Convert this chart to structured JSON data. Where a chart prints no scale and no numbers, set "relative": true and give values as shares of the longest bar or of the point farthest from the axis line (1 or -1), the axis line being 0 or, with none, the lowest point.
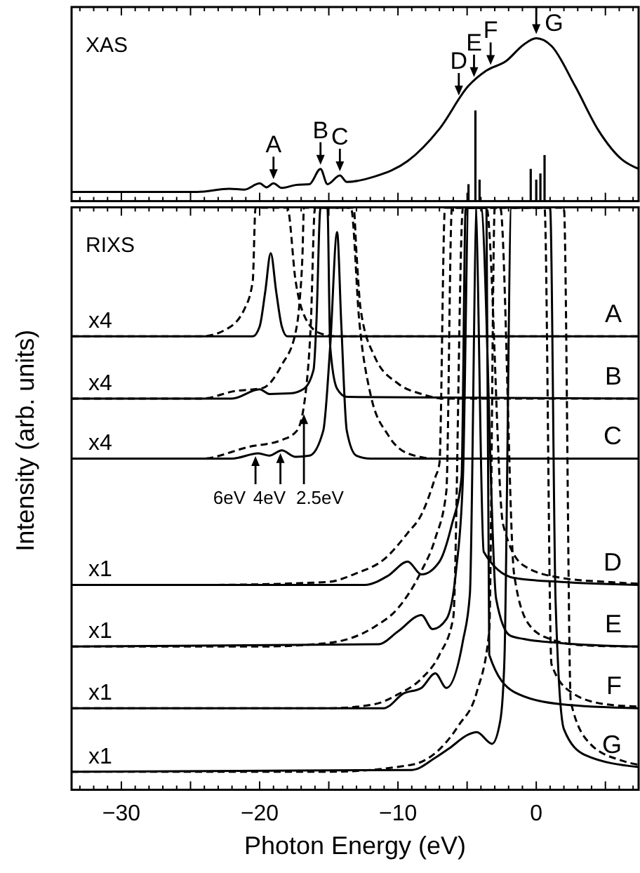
{
  "chart_data": [
    {
      "type": "line",
      "title": "XAS",
      "relative": true,
      "tick_labels": false,
      "xlim": [
        -33.6,
        7.4
      ],
      "xticks": [
        {
          "value": -33,
          "label": null
        },
        {
          "value": -32,
          "label": null
        },
        {
          "value": -31,
          "label": null
        },
        {
          "value": -30,
          "label": null
        },
        {
          "value": -29,
          "label": null
        },
        {
          "value": -28,
          "label": null
        },
        {
          "value": -27,
          "label": null
        },
        {
          "value": -26,
          "label": null
        },
        {
          "value": -25,
          "label": null
        },
        {
          "value": -24,
          "label": null
        },
        {
          "value": -23,
          "label": null
        },
        {
          "value": -22,
          "label": null
        },
        {
          "value": -21,
          "label": null
        },
        {
          "value": -20,
          "label": null
        },
        {
          "value": -19,
          "label": null
        },
        {
          "value": -18,
          "label": null
        },
        {
          "value": -17,
          "label": null
        },
        {
          "value": -16,
          "label": null
        },
        {
          "value": -15,
          "label": null
        },
        {
          "value": -14,
          "label": null
        },
        {
          "value": -13,
          "label": null
        },
        {
          "value": -12,
          "label": null
        },
        {
          "value": -11,
          "label": null
        },
        {
          "value": -10,
          "label": null
        },
        {
          "value": -9,
          "label": null
        },
        {
          "value": -8,
          "label": null
        },
        {
          "value": -7,
          "label": null
        },
        {
          "value": -6,
          "label": null
        },
        {
          "value": -5,
          "label": null
        },
        {
          "value": -4,
          "label": null
        },
        {
          "value": -3,
          "label": null
        },
        {
          "value": -2,
          "label": null
        },
        {
          "value": -1,
          "label": null
        },
        {
          "value": 0,
          "label": null
        },
        {
          "value": 1,
          "label": null
        },
        {
          "value": 2,
          "label": null
        },
        {
          "value": 3,
          "label": null
        },
        {
          "value": 4,
          "label": null
        },
        {
          "value": 5,
          "label": null
        },
        {
          "value": 6,
          "label": null
        },
        {
          "value": 7,
          "label": null
        }
      ],
      "series": [
        {
          "color": "#000000",
          "line_style": "solid",
          "x": [
            -33.6,
            -24.5,
            -22.2,
            -21.1,
            -20.0,
            -19.5,
            -19.0,
            -18.4,
            -17.4,
            -16.4,
            -15.6,
            -15.1,
            -14.2,
            -13.7,
            -11.7,
            -9.3,
            -7.0,
            -4.9,
            -3.6,
            -2.2,
            -0.9,
            0,
            1.1,
            2.8,
            4.5,
            6.2,
            7.4
          ],
          "values": [
            0.057,
            0.057,
            0.076,
            0.071,
            0.109,
            0.085,
            0.109,
            0.081,
            0.099,
            0.104,
            0.198,
            0.104,
            0.158,
            0.118,
            0.151,
            0.246,
            0.444,
            0.708,
            0.802,
            0.859,
            0.962,
            1,
            0.953,
            0.708,
            0.434,
            0.255,
            0.198
          ]
        },
        {
          "type": "bar",
          "color": "#000000",
          "x": [
            -4.9,
            -4.4,
            -4.1,
            -0.4,
            0,
            0.3,
            0.6
          ],
          "values": [
            0.104,
            0.557,
            0.132,
            0.198,
            0.132,
            0.17,
            0.283
          ]
        }
      ],
      "annotations": [
        {
          "text": "A",
          "x": -19.0,
          "y": 0.109
        },
        {
          "text": "B",
          "x": -15.6,
          "y": 0.198
        },
        {
          "text": "C",
          "x": -14.2,
          "y": 0.158
        },
        {
          "text": "D",
          "x": -5.6,
          "y": 0.623
        },
        {
          "text": "E",
          "x": -4.5,
          "y": 0.736
        },
        {
          "text": "F",
          "x": -3.3,
          "y": 0.811
        },
        {
          "text": "G",
          "x": 0,
          "y": 1
        }
      ]
    },
    {
      "type": "line",
      "title": "RIXS",
      "relative": true,
      "tick_labels": "x",
      "xlabel": "Photon Energy (eV)",
      "ylabel": "Intensity (arb. units)",
      "xlim": [
        -33.6,
        7.4
      ],
      "xticks": [
        {
          "value": -33,
          "label": null
        },
        {
          "value": -32,
          "label": null
        },
        {
          "value": -31,
          "label": null
        },
        {
          "value": -30,
          "label": "−30"
        },
        {
          "value": -29,
          "label": null
        },
        {
          "value": -28,
          "label": null
        },
        {
          "value": -27,
          "label": null
        },
        {
          "value": -26,
          "label": null
        },
        {
          "value": -25,
          "label": null
        },
        {
          "value": -24,
          "label": null
        },
        {
          "value": -23,
          "label": null
        },
        {
          "value": -22,
          "label": null
        },
        {
          "value": -21,
          "label": null
        },
        {
          "value": -20,
          "label": "−20"
        },
        {
          "value": -19,
          "label": null
        },
        {
          "value": -18,
          "label": null
        },
        {
          "value": -17,
          "label": null
        },
        {
          "value": -16,
          "label": null
        },
        {
          "value": -15,
          "label": null
        },
        {
          "value": -14,
          "label": null
        },
        {
          "value": -13,
          "label": null
        },
        {
          "value": -12,
          "label": null
        },
        {
          "value": -11,
          "label": null
        },
        {
          "value": -10,
          "label": "−10"
        },
        {
          "value": -9,
          "label": null
        },
        {
          "value": -8,
          "label": null
        },
        {
          "value": -7,
          "label": null
        },
        {
          "value": -6,
          "label": null
        },
        {
          "value": -5,
          "label": null
        },
        {
          "value": -4,
          "label": null
        },
        {
          "value": -3,
          "label": null
        },
        {
          "value": -2,
          "label": null
        },
        {
          "value": -1,
          "label": null
        },
        0,
        {
          "value": 1,
          "label": null
        },
        {
          "value": 2,
          "label": null
        },
        {
          "value": 3,
          "label": null
        },
        {
          "value": 4,
          "label": null
        },
        {
          "value": 5,
          "label": null
        },
        {
          "value": 6,
          "label": null
        },
        {
          "value": 7,
          "label": null
        }
      ],
      "series": [
        {
          "name": "A",
          "color": "#000000",
          "line_style": "solid",
          "x": [
            -33.6,
            -20.5,
            -20.0,
            -19.6,
            -19.2,
            -18.8,
            -18.4,
            -18.0,
            7.4
          ],
          "values": [
            0.779,
            0.779,
            0.796,
            0.855,
            0.922,
            0.855,
            0.796,
            0.779,
            0.779
          ]
        },
        {
          "color": "#000000",
          "line_style": "dashed",
          "x": [
            -33.6,
            -24.2,
            -22.5,
            -21.1,
            -20.5,
            -20.3,
            -18.0,
            -17.4,
            -16.8,
            -15.7,
            -14.4,
            7.4
          ],
          "values": [
            0.779,
            0.779,
            0.79,
            0.826,
            0.874,
            1,
            1,
            0.874,
            0.816,
            0.785,
            0.779,
            0.779
          ]
        },
        {
          "name": "B",
          "color": "#000000",
          "line_style": "solid",
          "x": [
            -33.6,
            -22,
            -20.0,
            -19.3,
            -17.8,
            -16.8,
            -16.1,
            -15.9,
            -15.6,
            -15.1,
            -14.9,
            -14.4,
            -13.7,
            7.4
          ],
          "values": [
            0.672,
            0.672,
            0.688,
            0.68,
            0.681,
            0.689,
            0.722,
            0.801,
            1,
            1,
            0.762,
            0.689,
            0.675,
            0.672
          ]
        },
        {
          "color": "#000000",
          "line_style": "dashed",
          "x": [
            -33.6,
            -24.2,
            -21.8,
            -19.8,
            -18.4,
            -17.4,
            -17.1,
            -16.9,
            -16.8,
            -13.2,
            -13.0,
            -12.7,
            -11.7,
            -10.0,
            -8.3,
            -6.6,
            7.4
          ],
          "values": [
            0.672,
            0.672,
            0.685,
            0.69,
            0.73,
            0.786,
            0.842,
            0.922,
            1,
            1,
            0.922,
            0.826,
            0.745,
            0.698,
            0.68,
            0.672,
            0.672
          ]
        },
        {
          "name": "C",
          "color": "#000000",
          "line_style": "solid",
          "x": [
            -33.6,
            -22,
            -20.1,
            -19.3,
            -18.4,
            -17.4,
            -16.4,
            -15.4,
            -14.9,
            -14.4,
            -14.1,
            -13.7,
            -13.0,
            -12.0,
            7.4
          ],
          "values": [
            0.569,
            0.569,
            0.578,
            0.574,
            0.583,
            0.572,
            0.574,
            0.617,
            0.762,
            0.958,
            0.801,
            0.617,
            0.574,
            0.569,
            0.569
          ]
        },
        {
          "color": "#000000",
          "line_style": "dashed",
          "x": [
            -33.6,
            -24.2,
            -20.8,
            -18.4,
            -17.3,
            -16.6,
            -16.3,
            -16.0,
            -13.4,
            -12.8,
            -12.0,
            -10.7,
            -9.3,
            -7.3,
            7.4
          ],
          "values": [
            0.569,
            0.569,
            0.589,
            0.601,
            0.617,
            0.698,
            0.801,
            1,
            1,
            0.806,
            0.681,
            0.609,
            0.578,
            0.569,
            0.569
          ]
        },
        {
          "name": "D",
          "color": "#000000",
          "line_style": "solid",
          "x": [
            -33.6,
            -12.4,
            -10.7,
            -9.3,
            -8.3,
            -7.0,
            -6.1,
            -5.4,
            -5.1,
            -4.4,
            -3.8,
            -1.6,
            1.8,
            7.4
          ],
          "values": [
            0.352,
            0.352,
            0.368,
            0.392,
            0.37,
            0.392,
            0.456,
            0.537,
            1,
            1,
            0.409,
            0.364,
            0.357,
            0.352
          ]
        },
        {
          "color": "#000000",
          "line_style": "dashed",
          "x": [
            -33.6,
            -23.9,
            -15.1,
            -13.0,
            -11.0,
            -9.3,
            -8.3,
            -7.3,
            -7.0,
            -6.6,
            -3.6,
            -2.4,
            -0.9,
            1.8,
            5.2,
            7.4
          ],
          "values": [
            0.352,
            0.352,
            0.357,
            0.372,
            0.396,
            0.441,
            0.473,
            0.537,
            0.561,
            1,
            1,
            0.456,
            0.385,
            0.364,
            0.357,
            0.354
          ]
        },
        {
          "name": "E",
          "color": "#000000",
          "line_style": "solid",
          "x": [
            -33.6,
            -11.4,
            -10.0,
            -8.3,
            -7.5,
            -6.5,
            -5.8,
            -5.3,
            -4.9,
            -4.0,
            -2.9,
            -1.9,
            -0.9,
            1.8,
            7.4
          ],
          "values": [
            0.246,
            0.25,
            0.272,
            0.3,
            0.276,
            0.293,
            0.376,
            0.537,
            1,
            1,
            0.328,
            0.265,
            0.259,
            0.252,
            0.246
          ]
        },
        {
          "color": "#000000",
          "line_style": "dashed",
          "x": [
            -33.6,
            -20.1,
            -15.1,
            -11.7,
            -10.0,
            -8.3,
            -7.3,
            -6.5,
            -6.1,
            -2.6,
            -1.6,
            -0.5,
            1.0,
            3.5,
            7.4
          ],
          "values": [
            0.246,
            0.246,
            0.252,
            0.28,
            0.312,
            0.376,
            0.432,
            0.513,
            1,
            1,
            0.37,
            0.283,
            0.259,
            0.248,
            0.246
          ]
        },
        {
          "name": "F",
          "color": "#000000",
          "line_style": "solid",
          "x": [
            -33.6,
            -11.0,
            -10.7,
            -9.7,
            -8.3,
            -7.3,
            -6.5,
            -5.3,
            -4.8,
            -4.3,
            -3.6,
            -3.4,
            -1.6,
            1.8,
            7.4
          ],
          "values": [
            0.14,
            0.14,
            0.143,
            0.164,
            0.175,
            0.2,
            0.175,
            0.256,
            0.336,
            1,
            1,
            0.232,
            0.168,
            0.147,
            0.14
          ]
        },
        {
          "color": "#000000",
          "line_style": "dashed",
          "x": [
            -33.6,
            -15.1,
            -11.7,
            -10.0,
            -8.3,
            -7.0,
            -6.0,
            -5.3,
            0.6,
            1.1,
            2.5,
            5.0,
            7.4
          ],
          "values": [
            0.14,
            0.14,
            0.147,
            0.164,
            0.191,
            0.232,
            0.296,
            1,
            1,
            0.216,
            0.168,
            0.147,
            0.143
          ]
        },
        {
          "name": "G",
          "color": "#000000",
          "line_style": "solid",
          "x": [
            -33.6,
            -9.0,
            -7.3,
            -6.3,
            -4.9,
            -4.3,
            -3.2,
            -2.6,
            -2.3,
            -1.8,
            1.0,
            1.4,
            2.0,
            3.5,
            7.4
          ],
          "values": [
            0.031,
            0.034,
            0.055,
            0.071,
            0.095,
            0.099,
            0.079,
            0.119,
            0.225,
            1,
            1,
            0.322,
            0.104,
            0.06,
            0.039
          ]
        },
        {
          "color": "#000000",
          "line_style": "dashed",
          "x": [
            -33.6,
            -15.0,
            -9.0,
            -7.3,
            -5.6,
            -4.3,
            -3.4,
            -3.0,
            2.0,
            2.5,
            3.9,
            6.2,
            7.4
          ],
          "values": [
            0.031,
            0.031,
            0.043,
            0.063,
            0.111,
            0.168,
            0.273,
            1,
            1,
            0.151,
            0.079,
            0.05,
            0.043
          ]
        }
      ],
      "annotations": [
        "x4",
        "x4",
        "x4",
        "x1",
        "x1",
        "x1",
        "x1",
        {
          "text": "6eV",
          "x": -20.3,
          "y": 0.578
        },
        {
          "text": "4eV",
          "x": -18.5,
          "y": 0.583
        },
        {
          "text": "2.5eV",
          "x": -16.8,
          "y": 0.65
        }
      ]
    }
  ]
}
